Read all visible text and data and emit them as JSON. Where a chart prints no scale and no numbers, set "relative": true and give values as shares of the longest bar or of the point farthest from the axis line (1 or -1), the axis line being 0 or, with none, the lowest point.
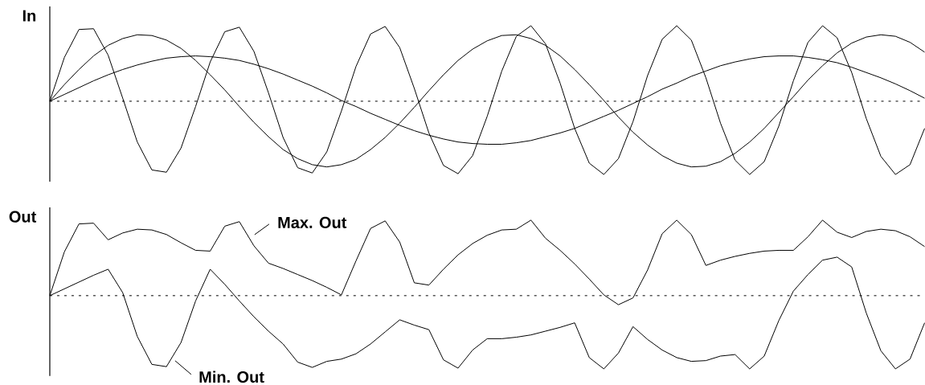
{
  "chart_data": [
    {
      "type": "line",
      "ylabel": "In",
      "relative": true,
      "categories": [
        null,
        null,
        null,
        null,
        null,
        null,
        null,
        null,
        null,
        null,
        null,
        null,
        null,
        null,
        null,
        null,
        null,
        null,
        null,
        null,
        null,
        null,
        null,
        null,
        null,
        null,
        null,
        null,
        null,
        null,
        null,
        null,
        null,
        null,
        null,
        null,
        null,
        null,
        null,
        null,
        null,
        null,
        null,
        null,
        null,
        null,
        null,
        null,
        null,
        null,
        null,
        null,
        null,
        null,
        null,
        null,
        null,
        null,
        null,
        null,
        null
      ],
      "ref_lines": [
        {
          "axis": "y",
          "value": 0,
          "line_style": "dashed",
          "color": "#000000"
        }
      ],
      "series": [
        {
          "color": "#000000",
          "values": [
            0,
            0.58,
            0.95,
            0.96,
            0.61,
            0.04,
            -0.54,
            -0.91,
            -0.94,
            -0.62,
            -0.07,
            0.52,
            0.92,
            0.98,
            0.66,
            0.11,
            -0.48,
            -0.88,
            -0.95,
            -0.67,
            -0.13,
            0.46,
            0.89,
            0.99,
            0.71,
            0.17,
            -0.42,
            -0.85,
            -0.96,
            -0.72,
            -0.2,
            0.4,
            0.86,
            1.0,
            0.76,
            0.24,
            -0.36,
            -0.82,
            -0.97,
            -0.76,
            -0.27,
            0.34,
            0.82,
            1.0,
            0.81,
            0.31,
            -0.29,
            -0.78,
            -0.97,
            -0.8,
            -0.33,
            0.27,
            0.78,
            1.0,
            0.84,
            0.38,
            -0.23,
            -0.73,
            -0.97,
            -0.84,
            -0.36
          ]
        },
        {
          "color": "#000000",
          "values": [
            0,
            0.22,
            0.42,
            0.6,
            0.74,
            0.83,
            0.88,
            0.87,
            0.81,
            0.7,
            0.54,
            0.35,
            0.15,
            -0.07,
            -0.28,
            -0.47,
            -0.64,
            -0.76,
            -0.84,
            -0.87,
            -0.84,
            -0.77,
            -0.64,
            -0.48,
            -0.29,
            -0.08,
            0.14,
            0.35,
            0.54,
            0.69,
            0.8,
            0.87,
            0.88,
            0.83,
            0.74,
            0.6,
            0.42,
            0.22,
            0.01,
            -0.21,
            -0.41,
            -0.58,
            -0.72,
            -0.82,
            -0.87,
            -0.86,
            -0.8,
            -0.69,
            -0.54,
            -0.36,
            -0.15,
            0.06,
            0.28,
            0.47,
            0.64,
            0.77,
            0.85,
            0.88,
            0.86,
            0.78,
            0.65
          ]
        },
        {
          "color": "#000000",
          "values": [
            0,
            0.09,
            0.18,
            0.27,
            0.35,
            0.42,
            0.48,
            0.53,
            0.57,
            0.59,
            0.6,
            0.59,
            0.57,
            0.54,
            0.49,
            0.43,
            0.36,
            0.28,
            0.2,
            0.11,
            0.01,
            -0.07,
            -0.16,
            -0.24,
            -0.32,
            -0.39,
            -0.45,
            -0.5,
            -0.54,
            -0.56,
            -0.57,
            -0.57,
            -0.55,
            -0.52,
            -0.47,
            -0.42,
            -0.36,
            -0.28,
            -0.2,
            -0.12,
            -0.03,
            0.06,
            0.16,
            0.24,
            0.33,
            0.4,
            0.47,
            0.52,
            0.56,
            0.59,
            0.6,
            0.6,
            0.58,
            0.55,
            0.51,
            0.45,
            0.38,
            0.31,
            0.23,
            0.14,
            0.04
          ]
        }
      ]
    },
    {
      "type": "line",
      "ylabel": "Out",
      "relative": true,
      "legend": "left",
      "categories": [
        null,
        null,
        null,
        null,
        null,
        null,
        null,
        null,
        null,
        null,
        null,
        null,
        null,
        null,
        null,
        null,
        null,
        null,
        null,
        null,
        null,
        null,
        null,
        null,
        null,
        null,
        null,
        null,
        null,
        null,
        null,
        null,
        null,
        null,
        null,
        null,
        null,
        null,
        null,
        null,
        null,
        null,
        null,
        null,
        null,
        null,
        null,
        null,
        null,
        null,
        null,
        null,
        null,
        null,
        null,
        null,
        null,
        null,
        null,
        null,
        null
      ],
      "ref_lines": [
        {
          "axis": "y",
          "value": 0,
          "line_style": "dashed",
          "color": "#000000"
        }
      ],
      "series": [
        {
          "name": "Max. Out",
          "color": "#000000",
          "values": [
            0,
            0.58,
            0.95,
            0.96,
            0.74,
            0.83,
            0.88,
            0.87,
            0.81,
            0.7,
            0.6,
            0.59,
            0.92,
            0.98,
            0.66,
            0.43,
            0.36,
            0.28,
            0.2,
            0.11,
            0.01,
            0.46,
            0.89,
            0.99,
            0.71,
            0.17,
            0.14,
            0.35,
            0.54,
            0.69,
            0.8,
            0.87,
            0.88,
            1.0,
            0.76,
            0.6,
            0.42,
            0.22,
            0.01,
            -0.12,
            -0.03,
            0.34,
            0.82,
            1.0,
            0.81,
            0.4,
            0.47,
            0.52,
            0.56,
            0.59,
            0.6,
            0.6,
            0.78,
            1.0,
            0.84,
            0.77,
            0.85,
            0.88,
            0.86,
            0.78,
            0.65
          ]
        },
        {
          "name": "Min. Out",
          "color": "#000000",
          "values": [
            0,
            0.09,
            0.18,
            0.27,
            0.35,
            0.04,
            -0.54,
            -0.91,
            -0.94,
            -0.62,
            -0.07,
            0.35,
            0.15,
            -0.07,
            -0.28,
            -0.47,
            -0.64,
            -0.88,
            -0.95,
            -0.87,
            -0.84,
            -0.77,
            -0.64,
            -0.48,
            -0.32,
            -0.39,
            -0.45,
            -0.85,
            -0.96,
            -0.72,
            -0.57,
            -0.57,
            -0.55,
            -0.52,
            -0.47,
            -0.42,
            -0.36,
            -0.82,
            -0.97,
            -0.76,
            -0.41,
            -0.58,
            -0.72,
            -0.82,
            -0.87,
            -0.86,
            -0.8,
            -0.78,
            -0.97,
            -0.8,
            -0.33,
            0.06,
            0.28,
            0.47,
            0.51,
            0.38,
            -0.23,
            -0.73,
            -0.97,
            -0.84,
            -0.36
          ]
        }
      ]
    }
  ]
}
